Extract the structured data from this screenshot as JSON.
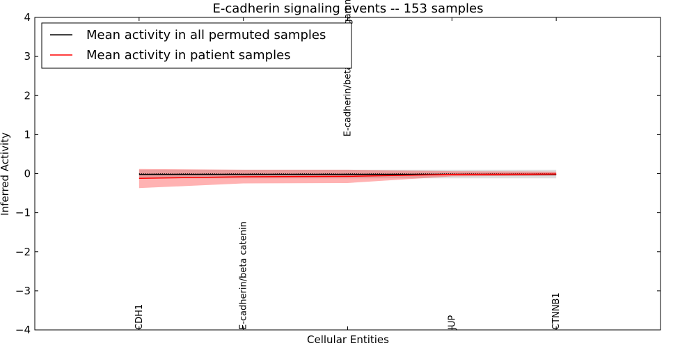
{
  "chart_data": {
    "type": "line",
    "title": "E-cadherin signaling events -- 153 samples",
    "xlabel": "Cellular Entities",
    "ylabel": "Inferred Activity",
    "ylim": [
      -4,
      4
    ],
    "yticks": [
      4,
      3,
      2,
      1,
      0,
      -1,
      -2,
      -3,
      -4
    ],
    "ytick_labels": [
      "4",
      "3",
      "2",
      "1",
      "0",
      "−1",
      "−2",
      "−3",
      "−4"
    ],
    "categories": [
      "CDH1",
      "E-cadherin/beta catenin",
      "E-cadherin/beta catenin-gamma catenin",
      "JUP",
      "CTNNB1"
    ],
    "category_label_offset": [
      0,
      0,
      0,
      0,
      0
    ],
    "category_label_y": [
      -4,
      -4,
      0.95,
      -4,
      -4
    ],
    "grid": false,
    "legend_placement": "top-left",
    "zero_line": "dotted",
    "series": [
      {
        "name": "Mean activity in all permuted samples",
        "color": "#000000",
        "values": [
          -0.02,
          -0.02,
          -0.02,
          -0.02,
          -0.02
        ],
        "band_upper": [
          0.1,
          0.1,
          0.1,
          0.1,
          0.1
        ],
        "band_lower": [
          -0.12,
          -0.12,
          -0.12,
          -0.12,
          -0.12
        ],
        "band_color": "#bbbbbb"
      },
      {
        "name": "Mean activity in patient samples",
        "color": "#ff0000",
        "values": [
          -0.12,
          -0.08,
          -0.07,
          -0.02,
          -0.01
        ],
        "band_upper": [
          0.12,
          0.1,
          0.1,
          0.06,
          0.05
        ],
        "band_lower": [
          -0.37,
          -0.25,
          -0.24,
          -0.07,
          -0.05
        ],
        "band_color": "#ff0000"
      }
    ]
  }
}
